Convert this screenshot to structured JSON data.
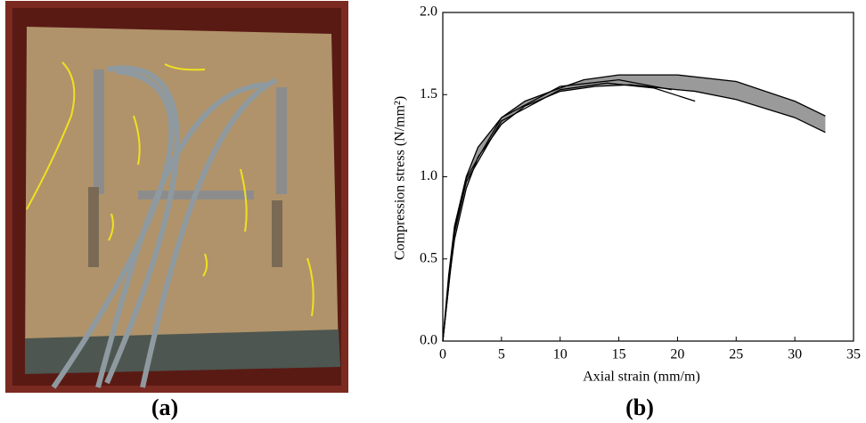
{
  "chart_data": {
    "type": "line",
    "captions": [
      "(a)",
      "(b)"
    ],
    "xlabel": "Axial strain (mm/m)",
    "ylabel": "Compression stress (N/mm²)",
    "xlim": [
      0,
      35
    ],
    "xticks": [
      0,
      5,
      10,
      15,
      20,
      25,
      30,
      35
    ],
    "ylim": [
      0,
      2.0
    ],
    "yticks": [
      {
        "value": 0,
        "label": "0.0"
      },
      {
        "value": 0.5,
        "label": "0.5"
      },
      {
        "value": 1.0,
        "label": "1.0"
      },
      {
        "value": 1.5,
        "label": "1.5"
      },
      {
        "value": 2.0,
        "label": "2.0"
      }
    ],
    "band_color": "#9a9a9a",
    "color": "#000000",
    "series": [
      {
        "x": [
          0,
          0.5,
          1,
          2,
          3,
          5,
          7,
          10,
          12,
          15,
          20,
          25,
          30,
          32.6
        ],
        "values": [
          0,
          0.4,
          0.7,
          1.0,
          1.18,
          1.36,
          1.46,
          1.54,
          1.59,
          1.62,
          1.62,
          1.58,
          1.46,
          1.37
        ]
      },
      {
        "x": [
          0,
          0.5,
          1,
          2,
          3,
          5,
          7,
          10,
          13,
          16,
          20,
          21.5,
          25,
          30,
          32.6
        ],
        "values": [
          0,
          0.35,
          0.62,
          0.93,
          1.12,
          1.32,
          1.43,
          1.52,
          1.55,
          1.56,
          1.53,
          1.52,
          1.47,
          1.36,
          1.27
        ]
      },
      {
        "x": [
          0,
          1,
          2,
          5,
          10,
          14,
          18,
          21.5
        ],
        "values": [
          0,
          0.66,
          0.97,
          1.34,
          1.53,
          1.57,
          1.54,
          1.46
        ]
      },
      {
        "x": [
          0,
          1,
          2,
          5,
          10,
          15,
          19.5
        ],
        "values": [
          0,
          0.68,
          0.99,
          1.36,
          1.55,
          1.59,
          1.53
        ]
      }
    ]
  }
}
